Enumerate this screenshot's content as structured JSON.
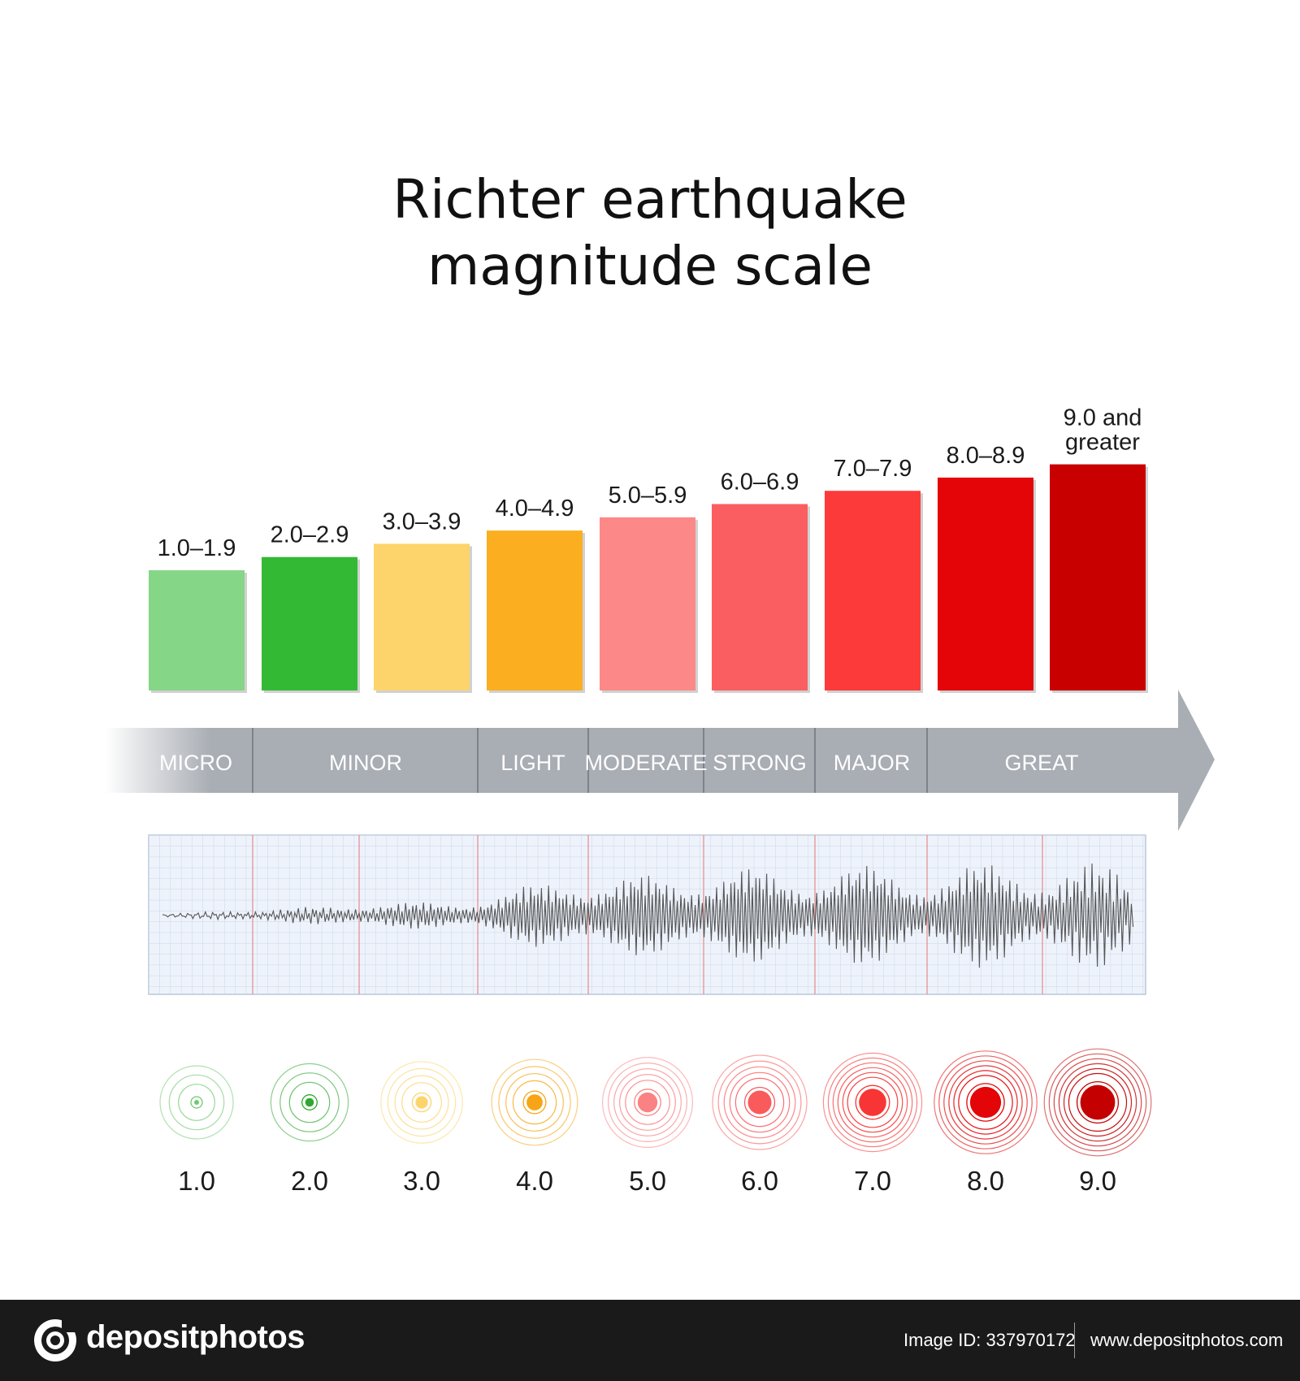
{
  "title": {
    "line1": "Richter earthquake",
    "line2": "magnitude scale"
  },
  "bars": [
    {
      "label": "1.0–1.9",
      "color": "#86d687"
    },
    {
      "label": "2.0–2.9",
      "color": "#34b934"
    },
    {
      "label": "3.0–3.9",
      "color": "#fdd46c"
    },
    {
      "label": "4.0–4.9",
      "color": "#fbae20"
    },
    {
      "label": "5.0–5.9",
      "color": "#fd8888"
    },
    {
      "label": "6.0–6.9",
      "color": "#fb5e60"
    },
    {
      "label": "7.0–7.9",
      "color": "#fd3a3a"
    },
    {
      "label": "8.0–8.9",
      "color": "#e30507"
    },
    {
      "label": "9.0 and greater",
      "label_lines": [
        "9.0 and",
        "greater"
      ],
      "color": "#c80000"
    }
  ],
  "categories": [
    "MICRO",
    "MINOR",
    "LIGHT",
    "MODERATE",
    "STRONG",
    "MAJOR",
    "GREAT"
  ],
  "arrow_color": "#a9adb4",
  "magnitudes": [
    {
      "label": "1.0",
      "color": "#6fc96f"
    },
    {
      "label": "2.0",
      "color": "#2ea82e"
    },
    {
      "label": "3.0",
      "color": "#fdd46c"
    },
    {
      "label": "4.0",
      "color": "#f7a516"
    },
    {
      "label": "5.0",
      "color": "#fb8282"
    },
    {
      "label": "6.0",
      "color": "#f95a5c"
    },
    {
      "label": "7.0",
      "color": "#f73535"
    },
    {
      "label": "8.0",
      "color": "#e30507"
    },
    {
      "label": "9.0",
      "color": "#c50000"
    }
  ],
  "footer": {
    "logo_text": "depositphotos",
    "image_id": "Image ID: 337970172",
    "url": "www.depositphotos.com"
  }
}
